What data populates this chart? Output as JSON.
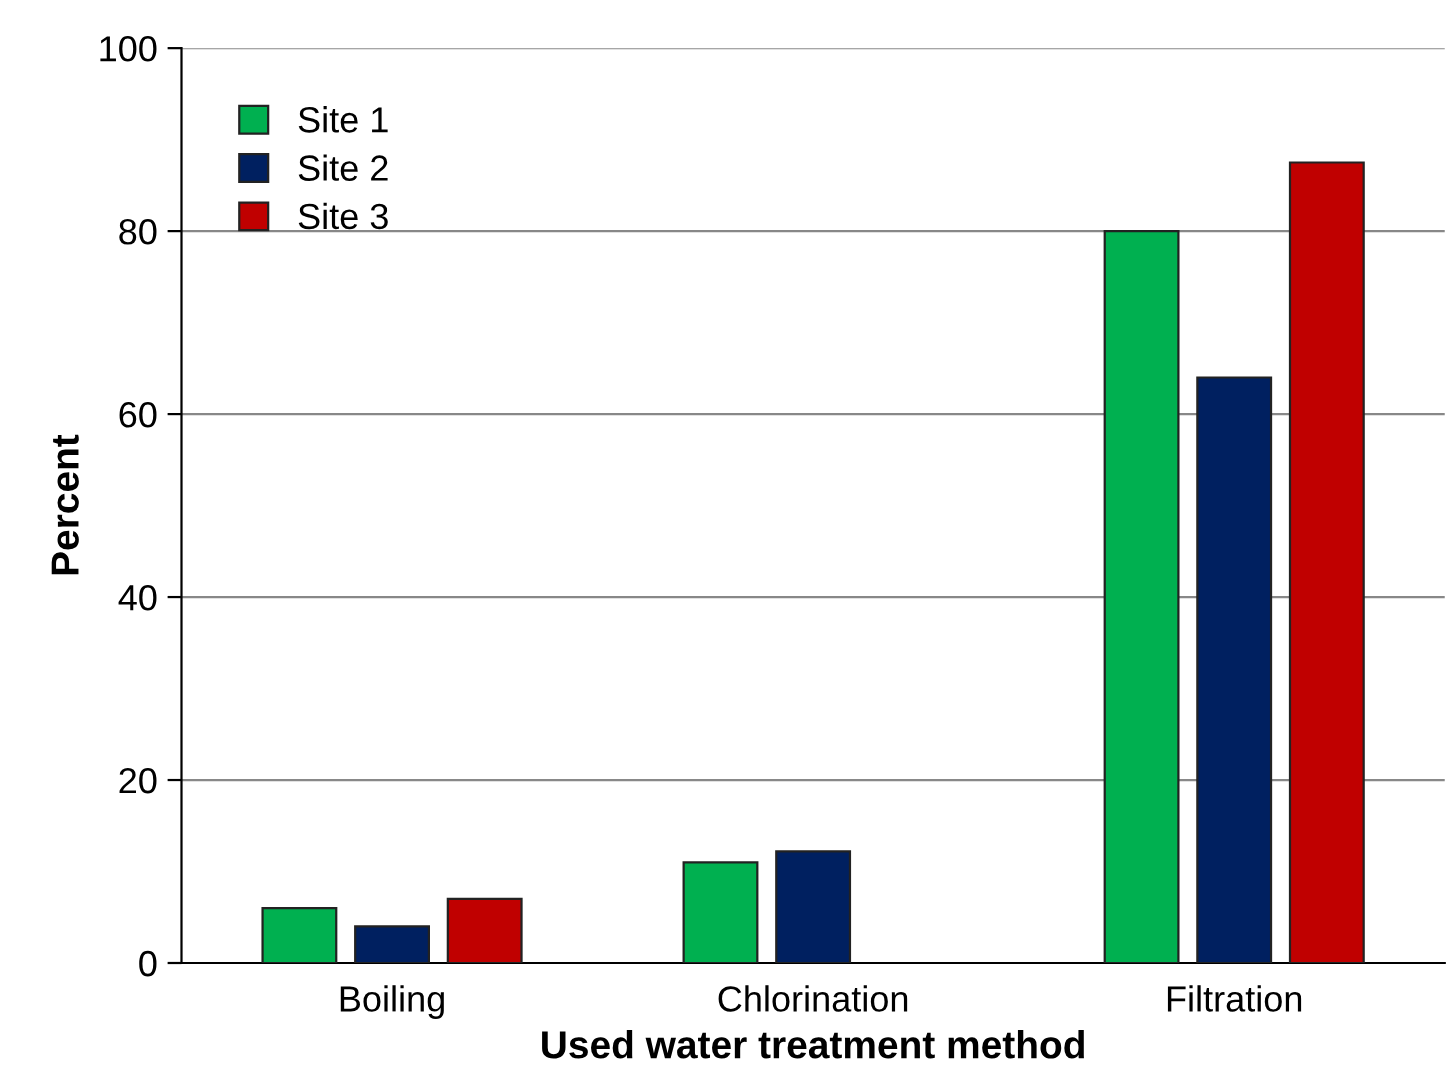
{
  "chart_data": {
    "type": "bar",
    "xlabel": "Used water treatment method",
    "ylabel": "Percent",
    "categories": [
      "Boiling",
      "Chlorination",
      "Filtration"
    ],
    "series": [
      {
        "name": "Site 1",
        "color": "#00b050",
        "values": [
          6,
          11,
          80
        ]
      },
      {
        "name": "Site 2",
        "color": "#002060",
        "values": [
          4,
          12.2,
          64
        ]
      },
      {
        "name": "Site 3",
        "color": "#c00000",
        "values": [
          7,
          null,
          87.5
        ]
      }
    ],
    "ylim": [
      0,
      100
    ],
    "yticks": [
      0,
      20,
      40,
      60,
      80,
      100
    ],
    "grid": "y",
    "legend": "top left"
  }
}
